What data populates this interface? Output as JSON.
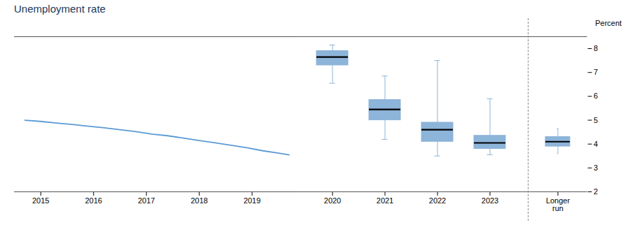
{
  "chart_data": {
    "title": "Unemployment rate",
    "ylabel": "Percent",
    "ylim": [
      2.0,
      8.5
    ],
    "yticks": [
      2,
      3,
      4,
      5,
      6,
      7,
      8
    ],
    "xlim": [
      2014.5,
      2019.8
    ],
    "xticks": [
      2015,
      2016,
      2017,
      2018,
      2019
    ],
    "grid": false,
    "series": [
      {
        "type": "line",
        "color": "#5b9bd5",
        "x": [
          2014.7,
          2015.0,
          2015.3,
          2015.6,
          2015.9,
          2016.2,
          2016.5,
          2016.8,
          2017.1,
          2017.4,
          2017.7,
          2018.0,
          2018.3,
          2018.6,
          2018.9,
          2019.2,
          2019.5,
          2019.7
        ],
        "values": [
          5.0,
          4.95,
          4.88,
          4.82,
          4.75,
          4.68,
          4.6,
          4.52,
          4.42,
          4.35,
          4.25,
          4.15,
          4.05,
          3.95,
          3.85,
          3.72,
          3.62,
          3.55
        ]
      },
      {
        "type": "box",
        "color": "#8db4d9",
        "categories": [
          "2020",
          "2021",
          "2022",
          "2023"
        ],
        "whisker_low": [
          6.55,
          4.2,
          3.5,
          3.55
        ],
        "q1": [
          7.3,
          5.0,
          4.1,
          3.8
        ],
        "median": [
          7.65,
          5.45,
          4.6,
          4.05
        ],
        "q3": [
          7.9,
          5.85,
          4.9,
          4.35
        ],
        "whisker_high": [
          8.15,
          6.85,
          7.5,
          5.9
        ]
      },
      {
        "type": "box",
        "color": "#8db4d9",
        "categories": [
          "Longer\nrun"
        ],
        "whisker_low": [
          3.6
        ],
        "q1": [
          3.9
        ],
        "median": [
          4.1
        ],
        "q3": [
          4.3
        ],
        "whisker_high": [
          4.65
        ]
      }
    ]
  }
}
